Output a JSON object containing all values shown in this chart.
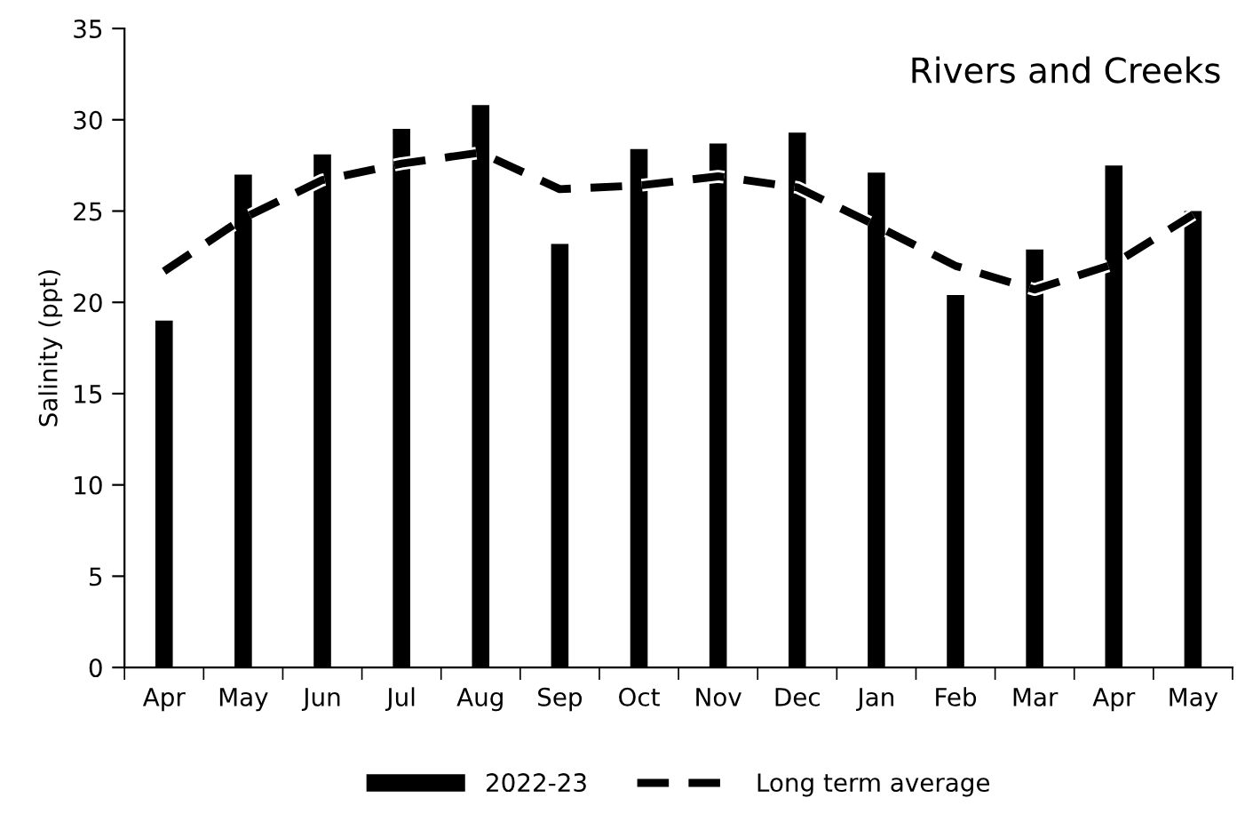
{
  "chart_data": {
    "type": "bar",
    "title": "Rivers and Creeks",
    "ylabel": "Salinity (ppt)",
    "categories": [
      "Apr",
      "May",
      "Jun",
      "Jul",
      "Aug",
      "Sep",
      "Oct",
      "Nov",
      "Dec",
      "Jan",
      "Feb",
      "Mar",
      "Apr",
      "May"
    ],
    "series": [
      {
        "name": "2022-23",
        "color": "#000000",
        "values": [
          19,
          27,
          28.1,
          29.5,
          30.8,
          23.2,
          28.4,
          28.7,
          29.3,
          27.1,
          20.4,
          22.9,
          27.5,
          25
        ]
      },
      {
        "name": "Long term average",
        "type": "line",
        "color": "#000000",
        "line_style": "dashed",
        "values": [
          21.7,
          24.6,
          26.7,
          27.6,
          28.2,
          26.2,
          26.4,
          26.9,
          26.3,
          24.2,
          22.0,
          20.7,
          22.1,
          24.8
        ]
      }
    ],
    "ylim": [
      0,
      35
    ],
    "yticks": [
      0,
      5,
      10,
      15,
      20,
      25,
      30,
      35
    ],
    "grid": false,
    "legend": "bottom"
  }
}
